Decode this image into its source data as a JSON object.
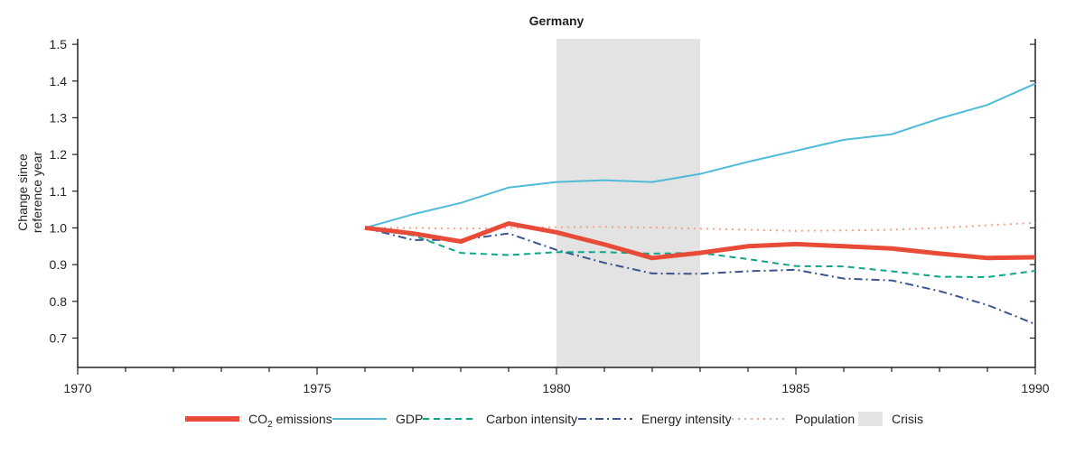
{
  "chart_data": {
    "type": "line",
    "title": "Germany",
    "ylabel": "Change since reference year",
    "xlabel": "",
    "xlim": [
      1970,
      1990
    ],
    "ylim": [
      0.62,
      1.515
    ],
    "x_ticks": [
      1970,
      1975,
      1980,
      1985,
      1990
    ],
    "y_ticks": [
      0.7,
      0.8,
      0.9,
      1.0,
      1.1,
      1.2,
      1.3,
      1.4,
      1.5
    ],
    "x": [
      1976,
      1977,
      1978,
      1979,
      1980,
      1981,
      1982,
      1983,
      1984,
      1985,
      1986,
      1987,
      1988,
      1989,
      1990
    ],
    "series": [
      {
        "name": "CO2 emissions",
        "color": "#e84b37",
        "style": "solid-thick",
        "values": [
          1.0,
          0.985,
          0.963,
          1.012,
          0.988,
          0.955,
          0.918,
          0.932,
          0.95,
          0.956,
          0.95,
          0.944,
          0.93,
          0.918,
          0.92
        ]
      },
      {
        "name": "GDP",
        "color": "#4fbbd9",
        "style": "solid",
        "values": [
          1.0,
          1.037,
          1.068,
          1.11,
          1.125,
          1.13,
          1.125,
          1.147,
          1.18,
          1.21,
          1.24,
          1.255,
          1.298,
          1.335,
          1.393
        ]
      },
      {
        "name": "Carbon intensity",
        "color": "#0fa58a",
        "style": "dashed",
        "values": [
          1.0,
          0.98,
          0.932,
          0.926,
          0.934,
          0.934,
          0.93,
          0.932,
          0.915,
          0.896,
          0.895,
          0.882,
          0.867,
          0.866,
          0.883
        ]
      },
      {
        "name": "Energy intensity",
        "color": "#3c5490",
        "style": "dashdot",
        "values": [
          1.0,
          0.967,
          0.967,
          0.985,
          0.94,
          0.905,
          0.876,
          0.875,
          0.882,
          0.886,
          0.862,
          0.857,
          0.828,
          0.79,
          0.738
        ]
      },
      {
        "name": "Population",
        "color": "#f5a38a",
        "style": "dotted",
        "values": [
          1.0,
          1.0,
          0.998,
          1.0,
          1.002,
          1.003,
          1.001,
          0.998,
          0.995,
          0.992,
          0.993,
          0.995,
          1.0,
          1.007,
          1.014
        ]
      }
    ],
    "shaded_regions": [
      {
        "name": "Crisis",
        "start": 1980,
        "end": 1983,
        "color": "#e3e3e3"
      }
    ],
    "legend_position": "bottom",
    "grid": false
  }
}
